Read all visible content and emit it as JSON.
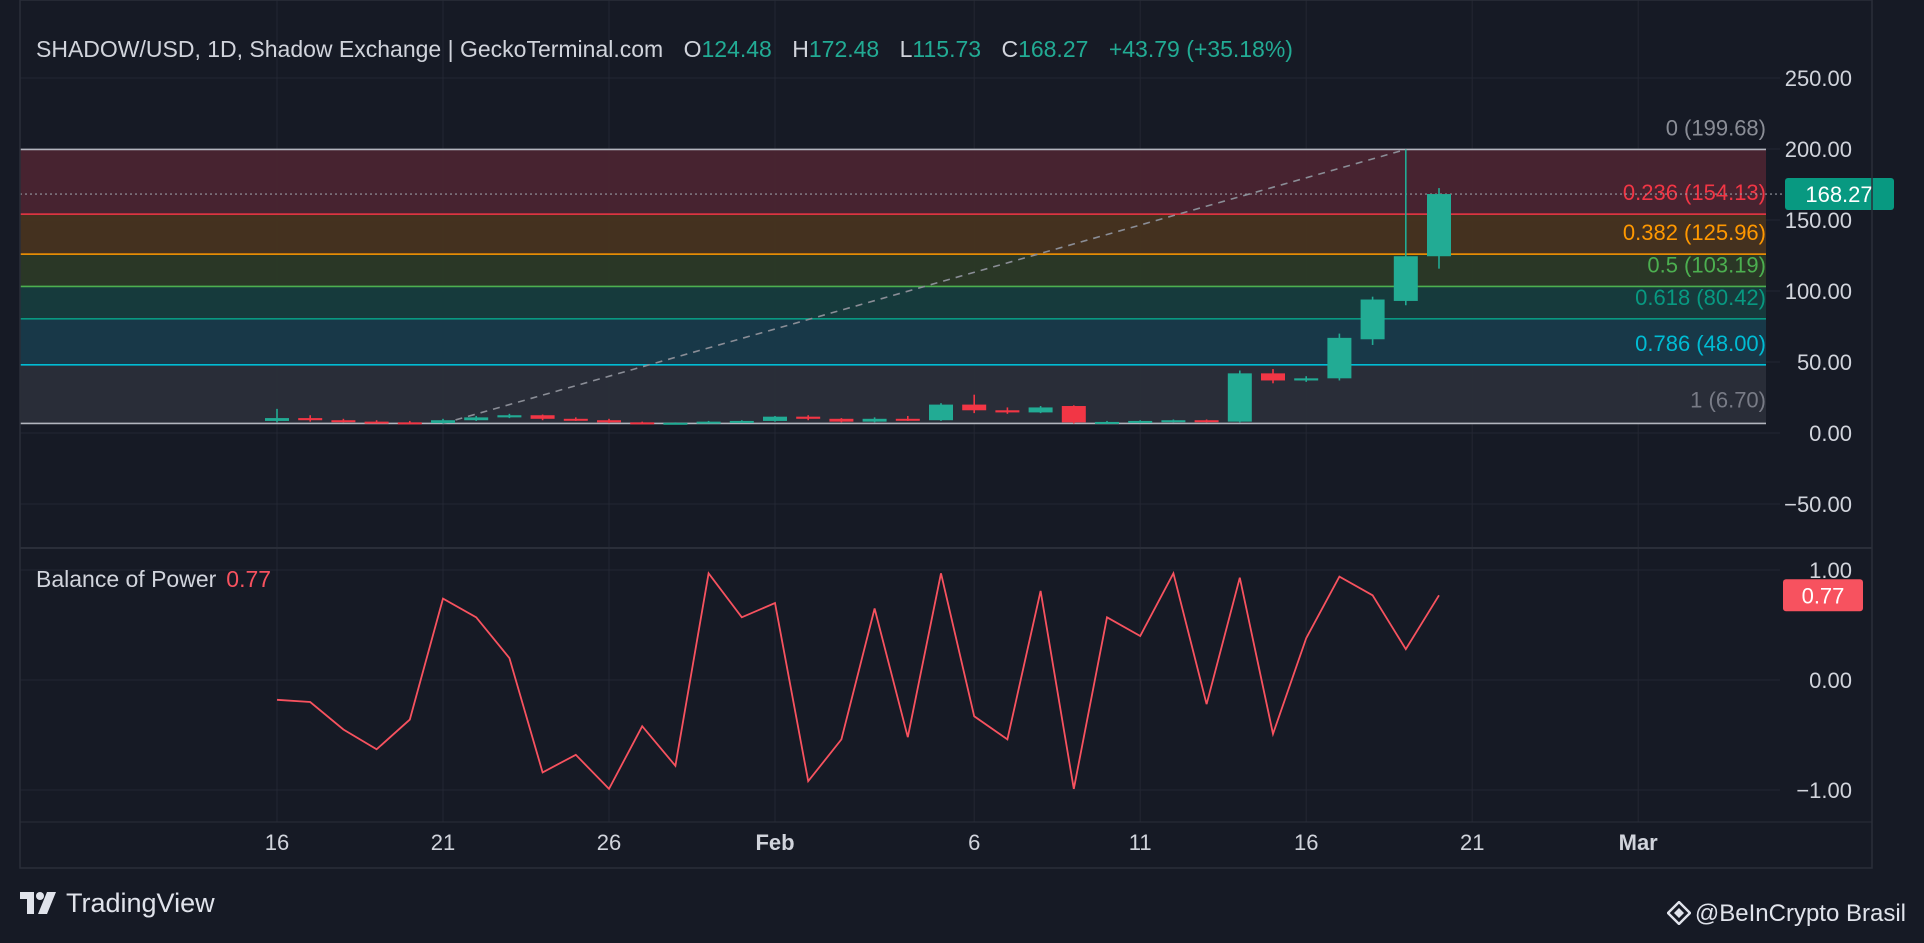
{
  "header": {
    "symbol": "SHADOW/USD, 1D, Shadow Exchange | GeckoTerminal.com",
    "open_label": "O",
    "open": "124.48",
    "high_label": "H",
    "high": "172.48",
    "low_label": "L",
    "low": "115.73",
    "close_label": "C",
    "close": "168.27",
    "change": "+43.79 (+35.18%)"
  },
  "price_badge": "168.27",
  "indicator": {
    "name": "Balance of Power",
    "value": "0.77",
    "badge": "0.77"
  },
  "footer": {
    "brand": "TradingView",
    "credit": "@BeInCrypto Brasil"
  },
  "colors": {
    "background": "#161a25",
    "up": "#22ab94",
    "down": "#f23645",
    "bop_line": "#f7525f"
  },
  "chart_data": [
    {
      "type": "candlestick",
      "x_ticks": [
        "16",
        "21",
        "26",
        "Feb",
        "6",
        "11",
        "16",
        "21",
        "Mar"
      ],
      "y_ticks": [
        "250.00",
        "200.00",
        "150.00",
        "100.00",
        "50.00",
        "0.00",
        "−50.00"
      ],
      "ylim": [
        -70,
        265
      ],
      "grid": true,
      "current_price": 168.27,
      "fib_levels": [
        {
          "level": "0",
          "price": 199.68,
          "label": "0 (199.68)",
          "line": "#b2b5be",
          "label_color": "#8a8d96",
          "fill": "#4a2430"
        },
        {
          "level": "0.236",
          "price": 154.13,
          "label": "0.236 (154.13)",
          "line": "#f23645",
          "label_color": "#f23645",
          "fill": "#47331f"
        },
        {
          "level": "0.382",
          "price": 125.96,
          "label": "0.382 (125.96)",
          "line": "#ff9800",
          "label_color": "#ff9800",
          "fill": "#2b3926"
        },
        {
          "level": "0.5",
          "price": 103.19,
          "label": "0.5 (103.19)",
          "line": "#4caf50",
          "label_color": "#4caf50",
          "fill": "#163c3d"
        },
        {
          "level": "0.618",
          "price": 80.42,
          "label": "0.618 (80.42)",
          "line": "#089981",
          "label_color": "#089981",
          "fill": "#183a4a"
        },
        {
          "level": "0.786",
          "price": 48.0,
          "label": "0.786 (48.00)",
          "line": "#00bcd4",
          "label_color": "#00bcd4",
          "fill": "#2a2e39"
        },
        {
          "level": "1",
          "price": 6.7,
          "label": "1 (6.70)",
          "line": "#b2b5be",
          "label_color": "#787b86",
          "fill": null
        }
      ],
      "trend_line": {
        "from": {
          "day": 21,
          "price": 6.7
        },
        "to": {
          "day": 50,
          "price": 199.68
        }
      },
      "candles": [
        {
          "day": 16,
          "o": 8.5,
          "h": 17,
          "l": 7.5,
          "c": 10.5
        },
        {
          "day": 17,
          "o": 10.5,
          "h": 12.5,
          "l": 8.0,
          "c": 9.0
        },
        {
          "day": 18,
          "o": 9.0,
          "h": 10.0,
          "l": 7.5,
          "c": 8.0
        },
        {
          "day": 19,
          "o": 8.0,
          "h": 9.0,
          "l": 7.0,
          "c": 7.5
        },
        {
          "day": 20,
          "o": 7.5,
          "h": 8.5,
          "l": 6.7,
          "c": 7.0
        },
        {
          "day": 21,
          "o": 7.0,
          "h": 10.0,
          "l": 6.7,
          "c": 9.0
        },
        {
          "day": 22,
          "o": 9.0,
          "h": 12.0,
          "l": 8.5,
          "c": 11.0
        },
        {
          "day": 23,
          "o": 11.0,
          "h": 13.5,
          "l": 10.5,
          "c": 12.5
        },
        {
          "day": 24,
          "o": 12.5,
          "h": 13.0,
          "l": 9.0,
          "c": 10.0
        },
        {
          "day": 25,
          "o": 10.0,
          "h": 11.0,
          "l": 8.5,
          "c": 9.0
        },
        {
          "day": 26,
          "o": 9.0,
          "h": 10.0,
          "l": 7.0,
          "c": 7.5
        },
        {
          "day": 27,
          "o": 7.5,
          "h": 8.0,
          "l": 6.7,
          "c": 7.0
        },
        {
          "day": 28,
          "o": 7.0,
          "h": 7.5,
          "l": 6.7,
          "c": 7.2
        },
        {
          "day": 29,
          "o": 7.2,
          "h": 8.5,
          "l": 7.0,
          "c": 8.0
        },
        {
          "day": 30,
          "o": 8.0,
          "h": 9.0,
          "l": 7.5,
          "c": 8.5
        },
        {
          "day": 31,
          "o": 8.5,
          "h": 12.0,
          "l": 8.0,
          "c": 11.5
        },
        {
          "day": 32,
          "o": 11.5,
          "h": 12.5,
          "l": 9.0,
          "c": 10.0
        },
        {
          "day": 33,
          "o": 10.0,
          "h": 10.5,
          "l": 7.5,
          "c": 8.0
        },
        {
          "day": 34,
          "o": 8.0,
          "h": 11.0,
          "l": 7.5,
          "c": 10.0
        },
        {
          "day": 35,
          "o": 10.0,
          "h": 12.0,
          "l": 8.5,
          "c": 9.0
        },
        {
          "day": 36,
          "o": 9.0,
          "h": 21.0,
          "l": 8.5,
          "c": 20.0
        },
        {
          "day": 37,
          "o": 20.0,
          "h": 27.0,
          "l": 14.0,
          "c": 16.0
        },
        {
          "day": 38,
          "o": 16.0,
          "h": 18.0,
          "l": 13.5,
          "c": 14.5
        },
        {
          "day": 39,
          "o": 14.5,
          "h": 19.0,
          "l": 14.0,
          "c": 18.0
        },
        {
          "day": 40,
          "o": 19.0,
          "h": 19.5,
          "l": 6.7,
          "c": 7.5
        },
        {
          "day": 41,
          "o": 7.5,
          "h": 8.5,
          "l": 6.8,
          "c": 7.8
        },
        {
          "day": 42,
          "o": 7.8,
          "h": 9.0,
          "l": 7.0,
          "c": 8.5
        },
        {
          "day": 43,
          "o": 8.5,
          "h": 9.5,
          "l": 7.5,
          "c": 9.0
        },
        {
          "day": 44,
          "o": 9.0,
          "h": 9.5,
          "l": 7.5,
          "c": 8.0
        },
        {
          "day": 45,
          "o": 8.0,
          "h": 44.0,
          "l": 7.5,
          "c": 42.0
        },
        {
          "day": 46,
          "o": 42.0,
          "h": 45.0,
          "l": 35.0,
          "c": 37.0
        },
        {
          "day": 47,
          "o": 37.0,
          "h": 40.0,
          "l": 36.0,
          "c": 38.5
        },
        {
          "day": 48,
          "o": 38.5,
          "h": 70.0,
          "l": 37.0,
          "c": 67.0
        },
        {
          "day": 49,
          "o": 66.0,
          "h": 96.0,
          "l": 62.0,
          "c": 94.0
        },
        {
          "day": 50,
          "o": 93.0,
          "h": 199.68,
          "l": 90.0,
          "c": 124.48
        },
        {
          "day": 51,
          "o": 124.48,
          "h": 172.48,
          "l": 115.73,
          "c": 168.27
        }
      ]
    },
    {
      "type": "line",
      "name": "Balance of Power",
      "y_ticks": [
        "1.00",
        "0.00",
        "−1.00"
      ],
      "ylim": [
        -1.2,
        1.2
      ],
      "x": [
        16,
        17,
        18,
        19,
        20,
        21,
        22,
        23,
        24,
        25,
        26,
        27,
        28,
        29,
        30,
        31,
        32,
        33,
        34,
        35,
        36,
        37,
        38,
        39,
        40,
        41,
        42,
        43,
        44,
        45,
        46,
        47,
        48,
        49,
        50,
        51
      ],
      "values": [
        -0.18,
        -0.2,
        -0.45,
        -0.63,
        -0.36,
        0.74,
        0.57,
        0.2,
        -0.84,
        -0.68,
        -0.99,
        -0.42,
        -0.78,
        0.97,
        0.57,
        0.7,
        -0.92,
        -0.54,
        0.65,
        -0.52,
        0.97,
        -0.33,
        -0.54,
        0.81,
        -0.99,
        0.57,
        0.4,
        0.97,
        -0.22,
        0.93,
        -0.49,
        0.38,
        0.94,
        0.77,
        0.28,
        0.77
      ]
    }
  ]
}
